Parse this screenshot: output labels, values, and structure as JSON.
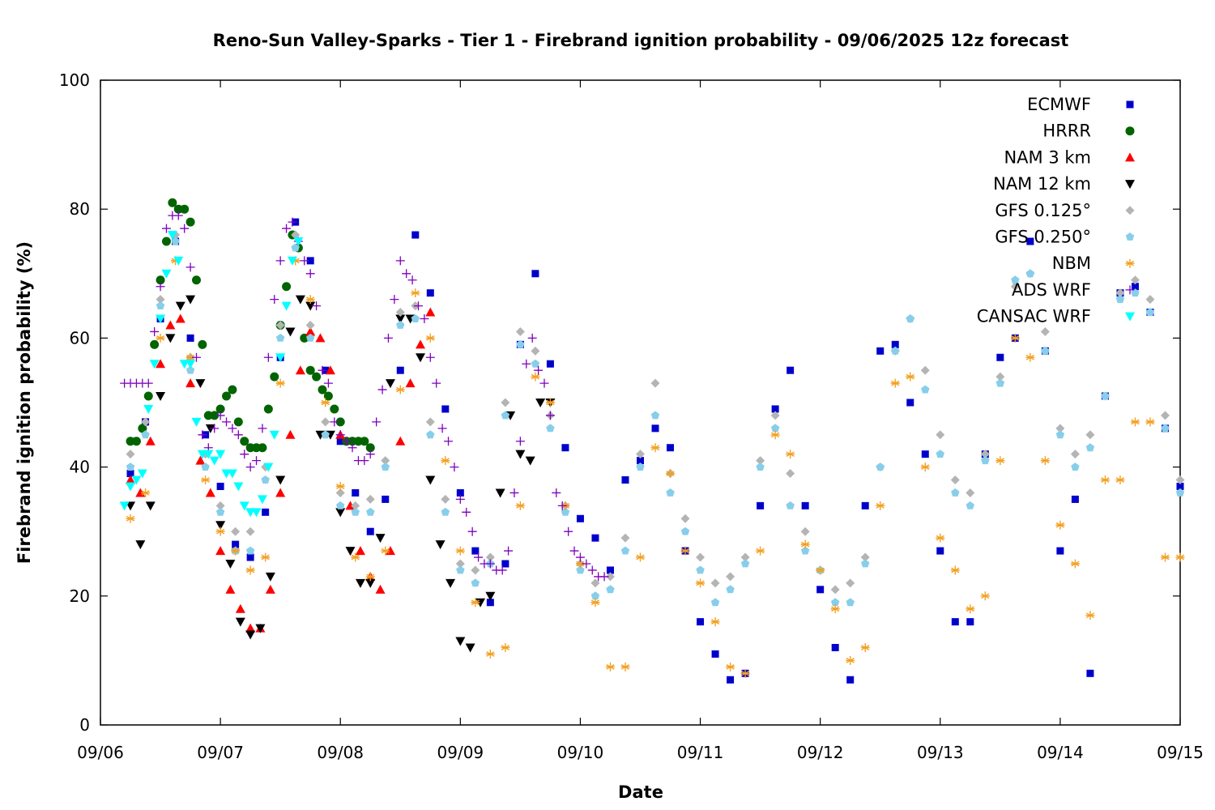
{
  "chart_data": {
    "type": "scatter",
    "title": "Reno-Sun Valley-Sparks - Tier 1 - Firebrand ignition probability - 09/06/2025 12z forecast",
    "xlabel": "Date",
    "ylabel": "Firebrand ignition probability (%)",
    "xlim": [
      "09/06",
      "09/15"
    ],
    "ylim": [
      0,
      100
    ],
    "x_ticks": [
      "09/06",
      "09/07",
      "09/08",
      "09/09",
      "09/10",
      "09/11",
      "09/12",
      "09/13",
      "09/14",
      "09/15"
    ],
    "y_ticks": [
      "0",
      "20",
      "40",
      "60",
      "80",
      "100"
    ],
    "grid": false,
    "legend_position": "top-right",
    "x_units": "day of September 2025 (fractional)",
    "series": [
      {
        "name": "ECMWF",
        "marker": "square",
        "color": "#0000cc",
        "x": [
          6.25,
          6.375,
          6.5,
          6.625,
          6.75,
          6.875,
          7.0,
          7.125,
          7.25,
          7.375,
          7.5,
          7.625,
          7.75,
          7.875,
          8.0,
          8.125,
          8.25,
          8.375,
          8.5,
          8.625,
          8.75,
          8.875,
          9.0,
          9.125,
          9.25,
          9.375,
          9.5,
          9.625,
          9.75,
          9.875,
          10.0,
          10.125,
          10.25,
          10.375,
          10.5,
          10.625,
          10.75,
          10.875,
          11.0,
          11.125,
          11.25,
          11.375,
          11.5,
          11.625,
          11.75,
          11.875,
          12.0,
          12.125,
          12.25,
          12.375,
          12.5,
          12.625,
          12.75,
          12.875,
          13.0,
          13.125,
          13.25,
          13.375,
          13.5,
          13.625,
          13.75,
          13.875,
          14.0,
          14.125,
          14.25,
          14.375,
          14.5,
          14.625,
          14.75,
          14.875,
          15.0
        ],
        "y": [
          39,
          47,
          63,
          75,
          60,
          45,
          37,
          28,
          26,
          33,
          57,
          78,
          72,
          55,
          44,
          36,
          30,
          35,
          55,
          76,
          67,
          49,
          36,
          27,
          19,
          25,
          59,
          70,
          56,
          43,
          32,
          29,
          24,
          38,
          41,
          46,
          43,
          27,
          16,
          11,
          7,
          8,
          34,
          49,
          55,
          34,
          21,
          12,
          7,
          34,
          58,
          59,
          50,
          42,
          27,
          16,
          16,
          42,
          57,
          60,
          75,
          58,
          27,
          35,
          8,
          51,
          67,
          68,
          64,
          46,
          37
        ]
      },
      {
        "name": "HRRR",
        "marker": "circle",
        "color": "#006400",
        "x": [
          6.25,
          6.3,
          6.35,
          6.4,
          6.45,
          6.5,
          6.55,
          6.6,
          6.65,
          6.7,
          6.75,
          6.8,
          6.85,
          6.9,
          6.95,
          7.0,
          7.05,
          7.1,
          7.15,
          7.2,
          7.25,
          7.3,
          7.35,
          7.4,
          7.45,
          7.5,
          7.55,
          7.6,
          7.65,
          7.7,
          7.75,
          7.8,
          7.85,
          7.9,
          7.95,
          8.0,
          8.05,
          8.1,
          8.15,
          8.2,
          8.25
        ],
        "y": [
          44,
          44,
          46,
          51,
          59,
          69,
          75,
          81,
          80,
          80,
          78,
          69,
          59,
          48,
          48,
          49,
          51,
          52,
          47,
          44,
          43,
          43,
          43,
          49,
          54,
          62,
          68,
          76,
          74,
          60,
          55,
          54,
          52,
          51,
          49,
          47,
          44,
          44,
          44,
          44,
          43
        ]
      },
      {
        "name": "NAM 3 km",
        "marker": "triangle-up",
        "color": "#ff0000",
        "x": [
          6.25,
          6.333,
          6.417,
          6.5,
          6.583,
          6.667,
          6.75,
          6.833,
          6.917,
          7.0,
          7.083,
          7.167,
          7.25,
          7.333,
          7.417,
          7.5,
          7.583,
          7.667,
          7.75,
          7.833,
          7.917,
          8.0,
          8.083,
          8.167,
          8.25,
          8.333,
          8.417,
          8.5,
          8.583,
          8.667,
          8.75
        ],
        "y": [
          38,
          36,
          44,
          56,
          62,
          63,
          53,
          41,
          36,
          27,
          21,
          18,
          15,
          15,
          21,
          36,
          45,
          55,
          61,
          60,
          55,
          45,
          34,
          27,
          23,
          21,
          27,
          44,
          53,
          59,
          64
        ]
      },
      {
        "name": "NAM 12 km",
        "marker": "triangle-down",
        "color": "#000000",
        "x": [
          6.25,
          6.333,
          6.417,
          6.5,
          6.583,
          6.667,
          6.75,
          6.833,
          6.917,
          7.0,
          7.083,
          7.167,
          7.25,
          7.333,
          7.417,
          7.5,
          7.583,
          7.667,
          7.75,
          7.833,
          7.917,
          8.0,
          8.083,
          8.167,
          8.25,
          8.333,
          8.417,
          8.5,
          8.583,
          8.667,
          8.75,
          8.833,
          8.917,
          9.0,
          9.083,
          9.167,
          9.25,
          9.333,
          9.417,
          9.5,
          9.583,
          9.667,
          9.75
        ],
        "y": [
          34,
          28,
          34,
          51,
          60,
          65,
          66,
          53,
          46,
          31,
          25,
          16,
          14,
          15,
          23,
          38,
          61,
          66,
          65,
          45,
          45,
          33,
          27,
          22,
          22,
          29,
          53,
          63,
          63,
          57,
          38,
          28,
          22,
          13,
          12,
          19,
          20,
          36,
          48,
          42,
          41,
          50,
          50
        ]
      },
      {
        "name": "GFS 0.125°",
        "marker": "diamond",
        "color": "#b4b4b4",
        "x": [
          6.25,
          6.375,
          6.5,
          6.625,
          6.75,
          6.875,
          7.0,
          7.125,
          7.25,
          7.375,
          7.5,
          7.625,
          7.75,
          7.875,
          8.0,
          8.125,
          8.25,
          8.375,
          8.5,
          8.625,
          8.75,
          8.875,
          9.0,
          9.125,
          9.25,
          9.375,
          9.5,
          9.625,
          9.75,
          9.875,
          10.0,
          10.125,
          10.25,
          10.375,
          10.5,
          10.625,
          10.75,
          10.875,
          11.0,
          11.125,
          11.25,
          11.375,
          11.5,
          11.625,
          11.75,
          11.875,
          12.0,
          12.125,
          12.25,
          12.375,
          12.5,
          12.625,
          12.75,
          12.875,
          13.0,
          13.125,
          13.25,
          13.375,
          13.5,
          13.625,
          13.75,
          13.875,
          14.0,
          14.125,
          14.25,
          14.375,
          14.5,
          14.625,
          14.75,
          14.875,
          15.0
        ],
        "y": [
          42,
          47,
          66,
          76,
          57,
          42,
          34,
          30,
          30,
          40,
          62,
          76,
          62,
          47,
          36,
          34,
          35,
          41,
          64,
          65,
          47,
          35,
          25,
          24,
          26,
          50,
          61,
          58,
          48,
          34,
          25,
          22,
          23,
          29,
          42,
          53,
          39,
          32,
          26,
          22,
          23,
          26,
          41,
          48,
          39,
          30,
          24,
          21,
          22,
          26,
          40,
          58,
          63,
          55,
          45,
          38,
          36,
          42,
          54,
          68,
          70,
          61,
          46,
          42,
          45,
          51,
          67,
          69,
          66,
          48,
          38
        ]
      },
      {
        "name": "GFS 0.250°",
        "marker": "pentagon",
        "color": "#87ceeb",
        "x": [
          6.25,
          6.375,
          6.5,
          6.625,
          6.75,
          6.875,
          7.0,
          7.125,
          7.25,
          7.375,
          7.5,
          7.625,
          7.75,
          7.875,
          8.0,
          8.125,
          8.25,
          8.375,
          8.5,
          8.625,
          8.75,
          8.875,
          9.0,
          9.125,
          9.25,
          9.375,
          9.5,
          9.625,
          9.75,
          9.875,
          10.0,
          10.125,
          10.25,
          10.375,
          10.5,
          10.625,
          10.75,
          10.875,
          11.0,
          11.125,
          11.25,
          11.375,
          11.5,
          11.625,
          11.75,
          11.875,
          12.0,
          12.125,
          12.25,
          12.375,
          12.5,
          12.625,
          12.75,
          12.875,
          13.0,
          13.125,
          13.25,
          13.375,
          13.5,
          13.625,
          13.75,
          13.875,
          14.0,
          14.125,
          14.25,
          14.375,
          14.5,
          14.625,
          14.75,
          14.875,
          15.0
        ],
        "y": [
          40,
          45,
          65,
          75,
          55,
          40,
          33,
          27,
          27,
          38,
          60,
          74,
          60,
          45,
          34,
          33,
          33,
          40,
          62,
          63,
          45,
          33,
          24,
          22,
          25,
          48,
          59,
          56,
          46,
          33,
          24,
          20,
          21,
          27,
          40,
          48,
          36,
          30,
          24,
          19,
          21,
          25,
          40,
          46,
          34,
          27,
          24,
          19,
          19,
          25,
          40,
          58,
          63,
          52,
          42,
          36,
          34,
          41,
          53,
          69,
          70,
          58,
          45,
          40,
          43,
          51,
          66,
          67,
          64,
          46,
          36
        ]
      },
      {
        "name": "NBM",
        "marker": "asterisk",
        "color": "#f4a020",
        "x": [
          6.25,
          6.375,
          6.5,
          6.625,
          6.75,
          6.875,
          7.0,
          7.125,
          7.25,
          7.375,
          7.5,
          7.625,
          7.75,
          7.875,
          8.0,
          8.125,
          8.25,
          8.375,
          8.5,
          8.625,
          8.75,
          8.875,
          9.0,
          9.125,
          9.25,
          9.375,
          9.5,
          9.625,
          9.75,
          9.875,
          10.0,
          10.125,
          10.25,
          10.375,
          10.5,
          10.625,
          10.75,
          10.875,
          11.0,
          11.125,
          11.25,
          11.375,
          11.5,
          11.625,
          11.75,
          11.875,
          12.0,
          12.125,
          12.25,
          12.375,
          12.5,
          12.625,
          12.75,
          12.875,
          13.0,
          13.125,
          13.25,
          13.375,
          13.5,
          13.625,
          13.75,
          13.875,
          14.0,
          14.125,
          14.25,
          14.375,
          14.5,
          14.625,
          14.75,
          14.875,
          15.0
        ],
        "y": [
          32,
          36,
          60,
          72,
          57,
          38,
          30,
          27,
          24,
          26,
          53,
          72,
          66,
          50,
          37,
          26,
          23,
          27,
          52,
          67,
          60,
          41,
          27,
          19,
          11,
          12,
          34,
          54,
          50,
          34,
          25,
          19,
          9,
          9,
          26,
          43,
          39,
          27,
          22,
          16,
          9,
          8,
          27,
          45,
          42,
          28,
          24,
          18,
          10,
          12,
          34,
          53,
          54,
          40,
          29,
          24,
          18,
          20,
          41,
          60,
          57,
          41,
          31,
          25,
          17,
          38,
          38,
          47,
          47,
          26,
          26
        ]
      },
      {
        "name": "ADS WRF",
        "marker": "plus",
        "color": "#7f00bf",
        "x": [
          6.2,
          6.25,
          6.3,
          6.35,
          6.4,
          6.45,
          6.5,
          6.55,
          6.6,
          6.65,
          6.7,
          6.75,
          6.8,
          6.85,
          6.9,
          6.95,
          7.0,
          7.05,
          7.1,
          7.15,
          7.2,
          7.25,
          7.3,
          7.35,
          7.4,
          7.45,
          7.5,
          7.55,
          7.6,
          7.65,
          7.7,
          7.75,
          7.8,
          7.85,
          7.9,
          7.95,
          8.0,
          8.05,
          8.1,
          8.15,
          8.2,
          8.25,
          8.3,
          8.35,
          8.4,
          8.45,
          8.5,
          8.55,
          8.6,
          8.65,
          8.7,
          8.75,
          8.8,
          8.85,
          8.9,
          8.95,
          9.0,
          9.05,
          9.1,
          9.15,
          9.2,
          9.25,
          9.3,
          9.35,
          9.4,
          9.45,
          9.5,
          9.55,
          9.6,
          9.65,
          9.7,
          9.75,
          9.8,
          9.85,
          9.9,
          9.95,
          10.0,
          10.05,
          10.1,
          10.15,
          10.2
        ],
        "y": [
          53,
          53,
          53,
          53,
          53,
          61,
          68,
          77,
          79,
          79,
          77,
          71,
          57,
          45,
          43,
          46,
          48,
          47,
          46,
          45,
          42,
          40,
          41,
          46,
          57,
          66,
          72,
          77,
          78,
          75,
          72,
          70,
          65,
          55,
          53,
          47,
          45,
          44,
          43,
          41,
          41,
          42,
          47,
          52,
          60,
          66,
          72,
          70,
          69,
          65,
          63,
          57,
          53,
          46,
          44,
          40,
          35,
          33,
          30,
          26,
          25,
          25,
          24,
          24,
          27,
          36,
          44,
          56,
          60,
          55,
          53,
          48,
          36,
          34,
          30,
          27,
          26,
          25,
          24,
          23,
          23
        ]
      },
      {
        "name": "CANSAC WRF",
        "marker": "triangle-down",
        "color": "#00ffff",
        "x": [
          6.2,
          6.25,
          6.3,
          6.35,
          6.4,
          6.45,
          6.5,
          6.55,
          6.6,
          6.65,
          6.7,
          6.75,
          6.8,
          6.85,
          6.9,
          6.95,
          7.0,
          7.05,
          7.1,
          7.15,
          7.2,
          7.25,
          7.3,
          7.35,
          7.4,
          7.45,
          7.5,
          7.55,
          7.6,
          7.65
        ],
        "y": [
          34,
          37,
          38,
          39,
          49,
          56,
          63,
          70,
          76,
          72,
          56,
          56,
          47,
          42,
          42,
          41,
          42,
          39,
          39,
          37,
          34,
          33,
          33,
          35,
          40,
          45,
          57,
          65,
          72,
          75
        ]
      }
    ]
  }
}
